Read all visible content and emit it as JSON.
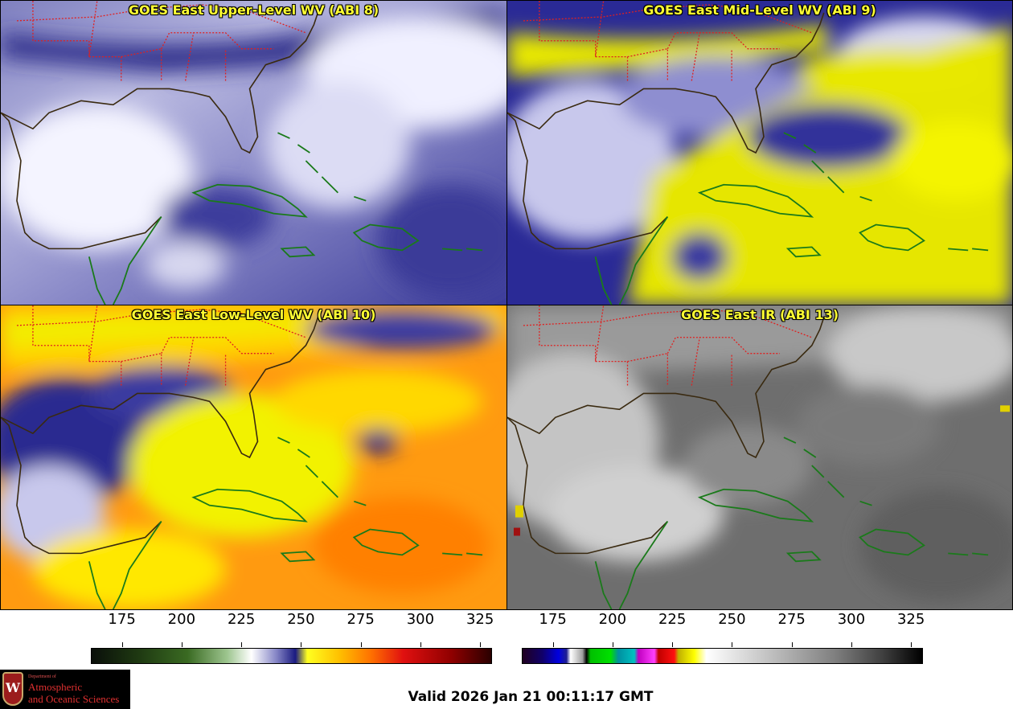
{
  "panels": [
    {
      "title": "GOES East Upper-Level WV (ABI 8)"
    },
    {
      "title": "GOES East Mid-Level WV (ABI 9)"
    },
    {
      "title": "GOES East Low-Level WV (ABI 10)"
    },
    {
      "title": "GOES East IR (ABI 13)"
    }
  ],
  "colorbars": [
    {
      "ticks": [
        "175",
        "200",
        "225",
        "250",
        "275",
        "300",
        "325"
      ],
      "range": [
        162,
        330
      ],
      "tick_values": [
        175,
        200,
        225,
        250,
        275,
        300,
        325
      ],
      "gradient": "linear-gradient(to right, #0a0f0a 0%, #1f3a12 12%, #3a6a22 24%, #9ec690 34%, #ffffff 40%, #8a8ac8 46%, #1a1a80 51%, #ffff20 54%, #ffc000 62%, #ff7000 70%, #e01010 78%, #900000 90%, #2a0000 100%)"
    },
    {
      "ticks": [
        "175",
        "200",
        "225",
        "250",
        "275",
        "300",
        "325"
      ],
      "range": [
        162,
        330
      ],
      "tick_values": [
        175,
        200,
        225,
        250,
        275,
        300,
        325
      ],
      "gradient": "linear-gradient(to right, #200020 0%, #10006a 5%, #0000e0 9%, #1e1e90 11%, #ffffff 12%, #a0a0a0 15%, #000000 16%, #00c000 17%, #00e000 22%, #0090a0 24%, #00c0c0 28%, #c000c0 29%, #ff40ff 33%, #c00000 34%, #ff1010 38%, #c0b000 39%, #ffff00 43%, #ffffff 46%, #c0c0c0 62%, #808080 78%, #404040 90%, #000000 100%)"
    }
  ],
  "logo": {
    "dept": "Department of",
    "line1": "Atmospheric",
    "line2": "and Oceanic Sciences",
    "seal": "W"
  },
  "valid": "Valid 2026 Jan 21 00:11:17 GMT"
}
